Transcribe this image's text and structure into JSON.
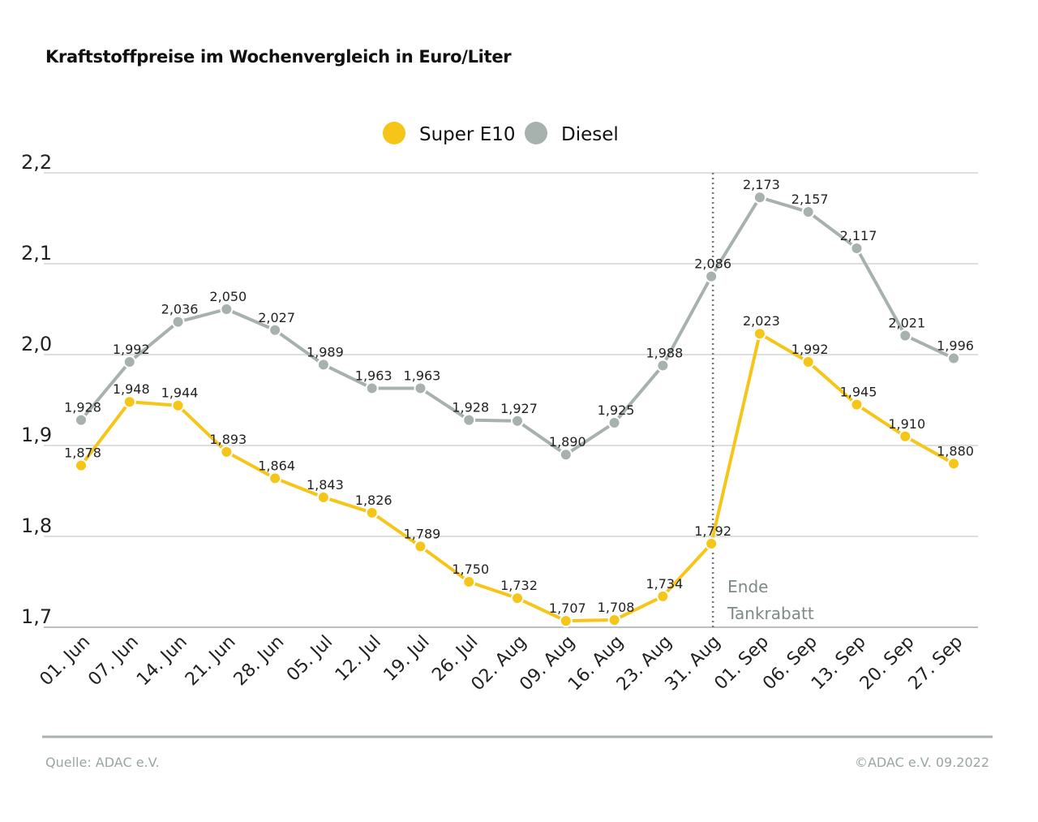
{
  "chart_data": {
    "type": "line",
    "title": "Kraftstoffpreise im Wochenvergleich in Euro/Liter",
    "categories": [
      "01. Jun",
      "07. Jun",
      "14. Jun",
      "21. Jun",
      "28. Jun",
      "05. Jul",
      "12. Jul",
      "19. Jul",
      "26. Jul",
      "02. Aug",
      "09. Aug",
      "16. Aug",
      "23. Aug",
      "31. Aug",
      "01. Sep",
      "06. Sep",
      "13. Sep",
      "20. Sep",
      "27. Sep"
    ],
    "series": [
      {
        "name": "Super E10",
        "color": "#f5c518",
        "values": [
          1.878,
          1.948,
          1.944,
          1.893,
          1.864,
          1.843,
          1.826,
          1.789,
          1.75,
          1.732,
          1.707,
          1.708,
          1.734,
          1.792,
          2.023,
          1.992,
          1.945,
          1.91,
          1.88
        ],
        "labels": [
          "1,878",
          "1,948",
          "1,944",
          "1,893",
          "1,864",
          "1,843",
          "1,826",
          "1,789",
          "1,750",
          "1,732",
          "1,707",
          "1,708",
          "1,734",
          "1,792",
          "2,023",
          "1,992",
          "1,945",
          "1,910",
          "1,880"
        ]
      },
      {
        "name": "Diesel",
        "color": "#a7b1ae",
        "values": [
          1.928,
          1.992,
          2.036,
          2.05,
          2.027,
          1.989,
          1.963,
          1.963,
          1.928,
          1.927,
          1.89,
          1.925,
          1.988,
          2.086,
          2.173,
          2.157,
          2.117,
          2.021,
          1.996
        ],
        "labels": [
          "1,928",
          "1,992",
          "2,036",
          "2,050",
          "2,027",
          "1,989",
          "1,963",
          "1,963",
          "1,928",
          "1,927",
          "1,890",
          "1,925",
          "1,988",
          "2,086",
          "2,173",
          "2,157",
          "2,117",
          "2,021",
          "1,996"
        ]
      }
    ],
    "ylim": [
      1.7,
      2.2
    ],
    "yticks": [
      {
        "v": 2.2,
        "label": "2,2"
      },
      {
        "v": 2.1,
        "label": "2,1"
      },
      {
        "v": 2.0,
        "label": "2,0"
      },
      {
        "v": 1.9,
        "label": "1,9"
      },
      {
        "v": 1.8,
        "label": "1,8"
      },
      {
        "v": 1.7,
        "label": "1,7"
      }
    ],
    "grid": true,
    "legend": "top-center",
    "annotation": {
      "category": "31. Aug",
      "lines": [
        "Ende",
        "Tankrabatt"
      ],
      "color": "#7d8a87"
    }
  },
  "footer": {
    "source": "Quelle: ADAC e.V.",
    "copyright": "©ADAC e.V.  09.2022"
  }
}
